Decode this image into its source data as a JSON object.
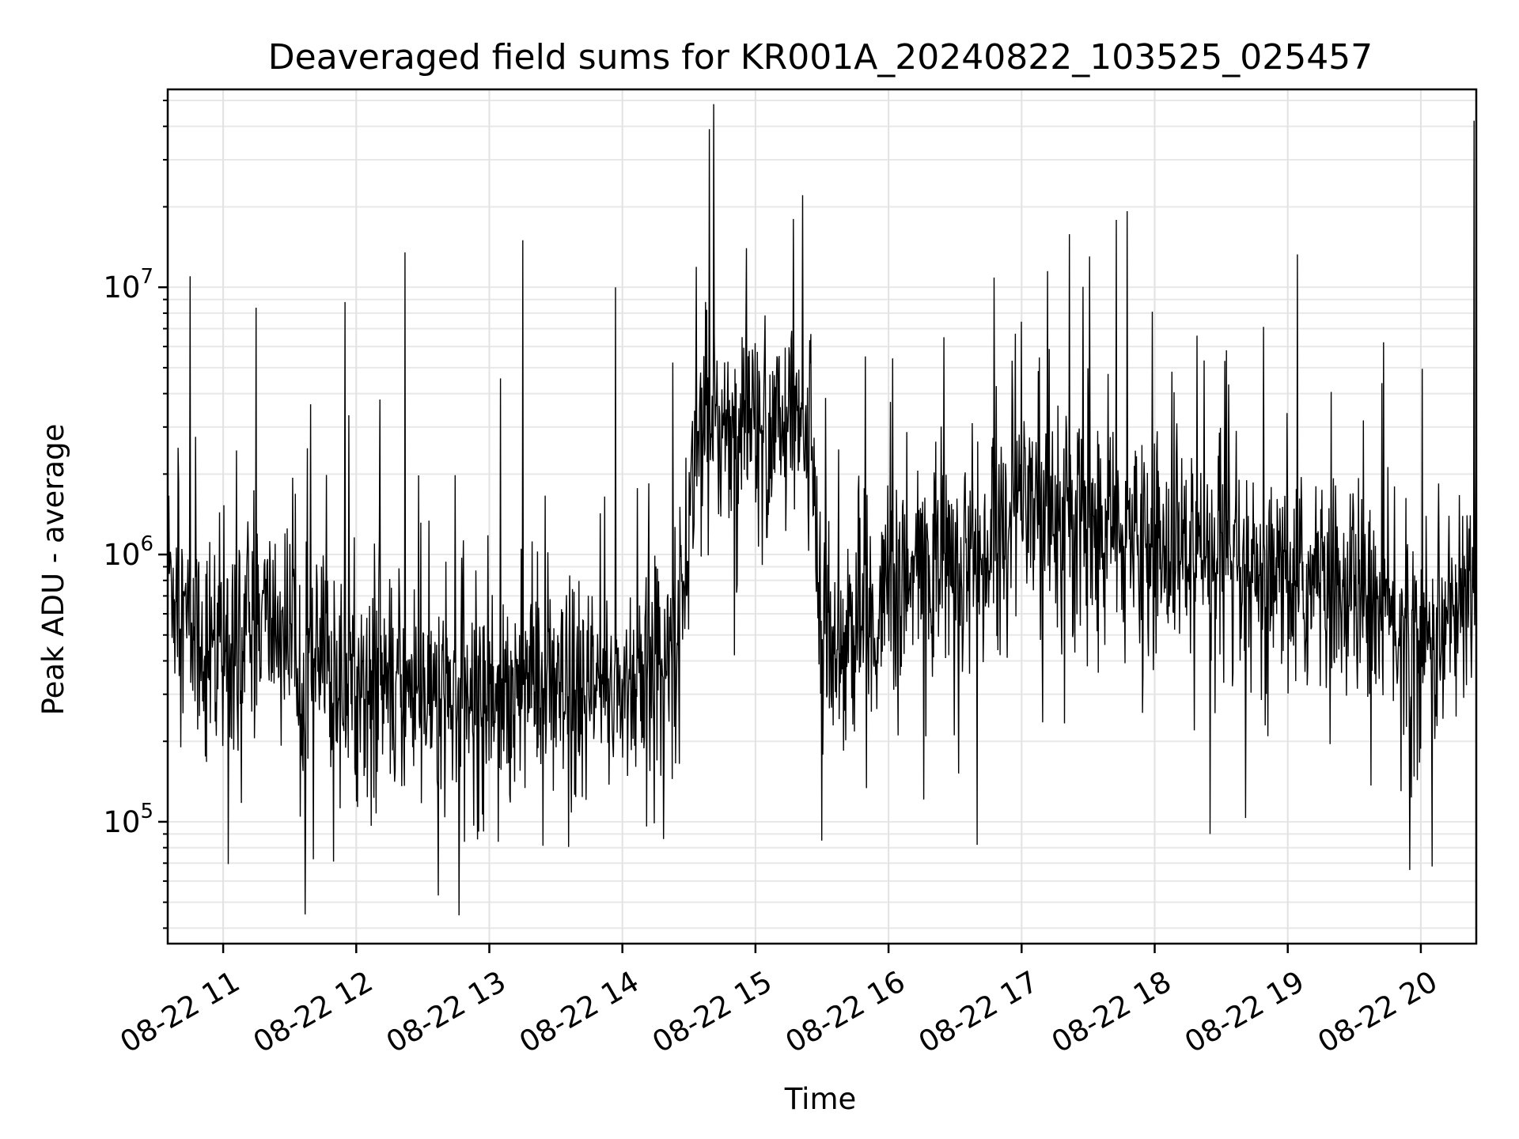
{
  "chart_data": {
    "type": "line",
    "title": "Deaveraged field sums for KR001A_20240822_103525_025457",
    "xlabel": "Time",
    "ylabel": "Peak ADU - average",
    "yscale": "log",
    "xlim": [
      "08-22 10:35",
      "08-22 20:25"
    ],
    "ylim": [
      35000,
      55000000
    ],
    "grid": true,
    "line_color": "#000000",
    "x_ticks": [
      "08-22 11",
      "08-22 12",
      "08-22 13",
      "08-22 14",
      "08-22 15",
      "08-22 16",
      "08-22 17",
      "08-22 18",
      "08-22 19",
      "08-22 20"
    ],
    "y_ticks": [
      {
        "base": "10",
        "exp": "5",
        "value": 100000
      },
      {
        "base": "10",
        "exp": "6",
        "value": 1000000
      },
      {
        "base": "10",
        "exp": "7",
        "value": 10000000
      }
    ],
    "series": [
      {
        "x": [
          "08-22 10:35",
          "08-22 10:45",
          "08-22 11:00",
          "08-22 11:15",
          "08-22 11:30",
          "08-22 11:45",
          "08-22 12:00",
          "08-22 12:15",
          "08-22 12:30",
          "08-22 12:45",
          "08-22 13:00",
          "08-22 13:15",
          "08-22 13:30",
          "08-22 13:45",
          "08-22 14:00",
          "08-22 14:15",
          "08-22 14:25",
          "08-22 14:35",
          "08-22 14:45",
          "08-22 15:00",
          "08-22 15:15",
          "08-22 15:25",
          "08-22 15:30",
          "08-22 15:45",
          "08-22 16:00",
          "08-22 16:15",
          "08-22 16:30",
          "08-22 16:45",
          "08-22 17:00",
          "08-22 17:15",
          "08-22 17:30",
          "08-22 17:45",
          "08-22 18:00",
          "08-22 18:15",
          "08-22 18:30",
          "08-22 18:45",
          "08-22 19:00",
          "08-22 19:15",
          "08-22 19:30",
          "08-22 19:45",
          "08-22 20:00",
          "08-22 20:15",
          "08-22 20:25"
        ],
        "y": [
          900000,
          500000,
          450000,
          600000,
          500000,
          380000,
          320000,
          330000,
          300000,
          280000,
          300000,
          350000,
          280000,
          290000,
          320000,
          380000,
          480000,
          3500000,
          3200000,
          3000000,
          2800000,
          3200000,
          500000,
          480000,
          650000,
          850000,
          950000,
          1100000,
          1600000,
          1700000,
          1300000,
          1150000,
          1050000,
          1000000,
          850000,
          700000,
          800000,
          750000,
          750000,
          600000,
          450000,
          550000,
          800000
        ]
      }
    ],
    "spikes": [
      {
        "x": "08-22 10:45",
        "y": 11000000
      },
      {
        "x": "08-22 11:55",
        "y": 8800000
      },
      {
        "x": "08-22 12:22",
        "y": 13500000
      },
      {
        "x": "08-22 13:15",
        "y": 15000000
      },
      {
        "x": "08-22 13:57",
        "y": 10000000
      },
      {
        "x": "08-22 14:56",
        "y": 14000000
      },
      {
        "x": "08-22 15:17",
        "y": 18000000
      },
      {
        "x": "08-22 16:25",
        "y": 6500000
      },
      {
        "x": "08-22 20:24",
        "y": 42000000
      }
    ],
    "dips": [
      {
        "x": "08-22 11:37",
        "y": 45000
      },
      {
        "x": "08-22 12:37",
        "y": 53000
      },
      {
        "x": "08-22 15:30",
        "y": 85000
      },
      {
        "x": "08-22 16:40",
        "y": 82000
      },
      {
        "x": "08-22 18:25",
        "y": 90000
      },
      {
        "x": "08-22 19:55",
        "y": 66000
      },
      {
        "x": "08-22 20:05",
        "y": 68000
      }
    ]
  }
}
